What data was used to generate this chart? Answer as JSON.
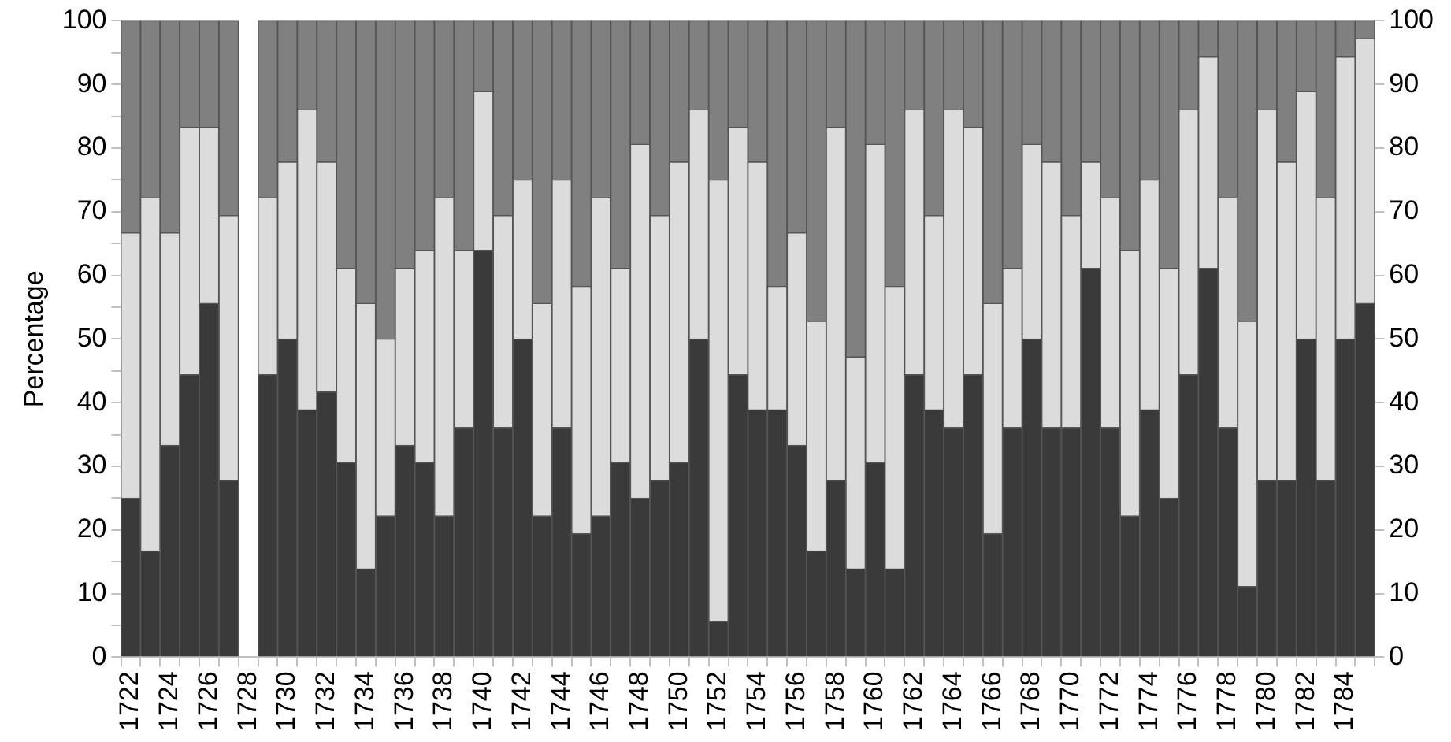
{
  "chart_data": {
    "type": "bar",
    "stacked": true,
    "ylabel": "Percentage",
    "categories": [
      "1722",
      null,
      "1724",
      null,
      "1726",
      null,
      "1728",
      null,
      "1730",
      null,
      "1732",
      null,
      "1734",
      null,
      "1736",
      null,
      "1738",
      null,
      "1740",
      null,
      "1742",
      null,
      "1744",
      null,
      "1746",
      null,
      "1748",
      null,
      "1750",
      null,
      "1752",
      null,
      "1754",
      null,
      "1756",
      null,
      "1758",
      null,
      "1760",
      null,
      "1762",
      null,
      "1764",
      null,
      "1766",
      null,
      "1768",
      null,
      "1770",
      null,
      "1772",
      null,
      "1774",
      null,
      "1776",
      null,
      "1778",
      null,
      "1780",
      null,
      "1782",
      null,
      "1784",
      null
    ],
    "series": [
      {
        "color": "#3a3a3a",
        "values": [
          25,
          16.7,
          33.3,
          44.4,
          55.6,
          27.8,
          null,
          44.4,
          50,
          38.9,
          41.7,
          30.6,
          13.9,
          22.2,
          33.3,
          30.6,
          22.2,
          36.1,
          63.9,
          36.1,
          50,
          22.2,
          36.1,
          19.4,
          22.2,
          30.6,
          25,
          27.8,
          30.6,
          50,
          5.6,
          44.4,
          38.9,
          38.9,
          33.3,
          16.7,
          27.8,
          13.9,
          30.6,
          13.9,
          44.4,
          38.9,
          36.1,
          44.4,
          19.4,
          36.1,
          50,
          36.1,
          36.1,
          61.1,
          36.1,
          22.2,
          38.9,
          25,
          44.4,
          61.1,
          36.1,
          11.1,
          27.8,
          27.8,
          50,
          27.8,
          50,
          55.6
        ]
      },
      {
        "color": "#dcdcdc",
        "values": [
          41.7,
          55.5,
          33.4,
          38.9,
          27.7,
          41.6,
          null,
          27.8,
          27.8,
          47.2,
          36.1,
          30.5,
          41.7,
          27.8,
          27.8,
          33.3,
          50,
          27.8,
          25,
          33.3,
          25,
          33.4,
          38.9,
          38.9,
          50,
          30.5,
          55.6,
          41.6,
          47.2,
          36.1,
          69.4,
          38.9,
          38.9,
          19.4,
          33.4,
          36.1,
          55.5,
          33.3,
          50,
          44.4,
          41.7,
          30.5,
          50,
          38.9,
          36.2,
          25,
          30.6,
          41.7,
          33.3,
          16.7,
          36.1,
          41.7,
          36.1,
          36.1,
          41.7,
          33.3,
          36.1,
          41.7,
          58.3,
          50,
          38.9,
          44.4,
          44.4,
          41.6
        ]
      },
      {
        "color": "#808080",
        "values": [
          33.3,
          27.8,
          33.3,
          16.7,
          16.7,
          30.6,
          null,
          27.8,
          22.2,
          13.9,
          22.2,
          38.9,
          44.4,
          50,
          38.9,
          36.1,
          27.8,
          36.1,
          11.1,
          30.6,
          25,
          44.4,
          25,
          41.7,
          27.8,
          38.9,
          19.4,
          30.6,
          22.2,
          13.9,
          25,
          16.7,
          22.2,
          41.7,
          33.3,
          47.2,
          16.7,
          52.8,
          19.4,
          41.7,
          13.9,
          30.6,
          13.9,
          16.7,
          44.4,
          38.9,
          19.4,
          22.2,
          30.6,
          22.2,
          27.8,
          36.1,
          25,
          38.9,
          13.9,
          5.6,
          27.8,
          47.2,
          13.9,
          22.2,
          11.1,
          27.8,
          5.6,
          2.8
        ]
      }
    ],
    "ylim": [
      0,
      100
    ],
    "yticks": [
      0,
      {
        "value": 5,
        "label": null
      },
      10,
      {
        "value": 15,
        "label": null
      },
      20,
      {
        "value": 25,
        "label": null
      },
      30,
      {
        "value": 35,
        "label": null
      },
      40,
      {
        "value": 45,
        "label": null
      },
      50,
      {
        "value": 55,
        "label": null
      },
      60,
      {
        "value": 65,
        "label": null
      },
      70,
      {
        "value": 75,
        "label": null
      },
      80,
      {
        "value": 85,
        "label": null
      },
      90,
      {
        "value": 95,
        "label": null
      },
      100
    ],
    "y2lim": [
      0,
      100
    ],
    "y2ticks": [
      0,
      10,
      20,
      30,
      40,
      50,
      60,
      70,
      80,
      90,
      100
    ],
    "grid": false,
    "legend": false
  }
}
